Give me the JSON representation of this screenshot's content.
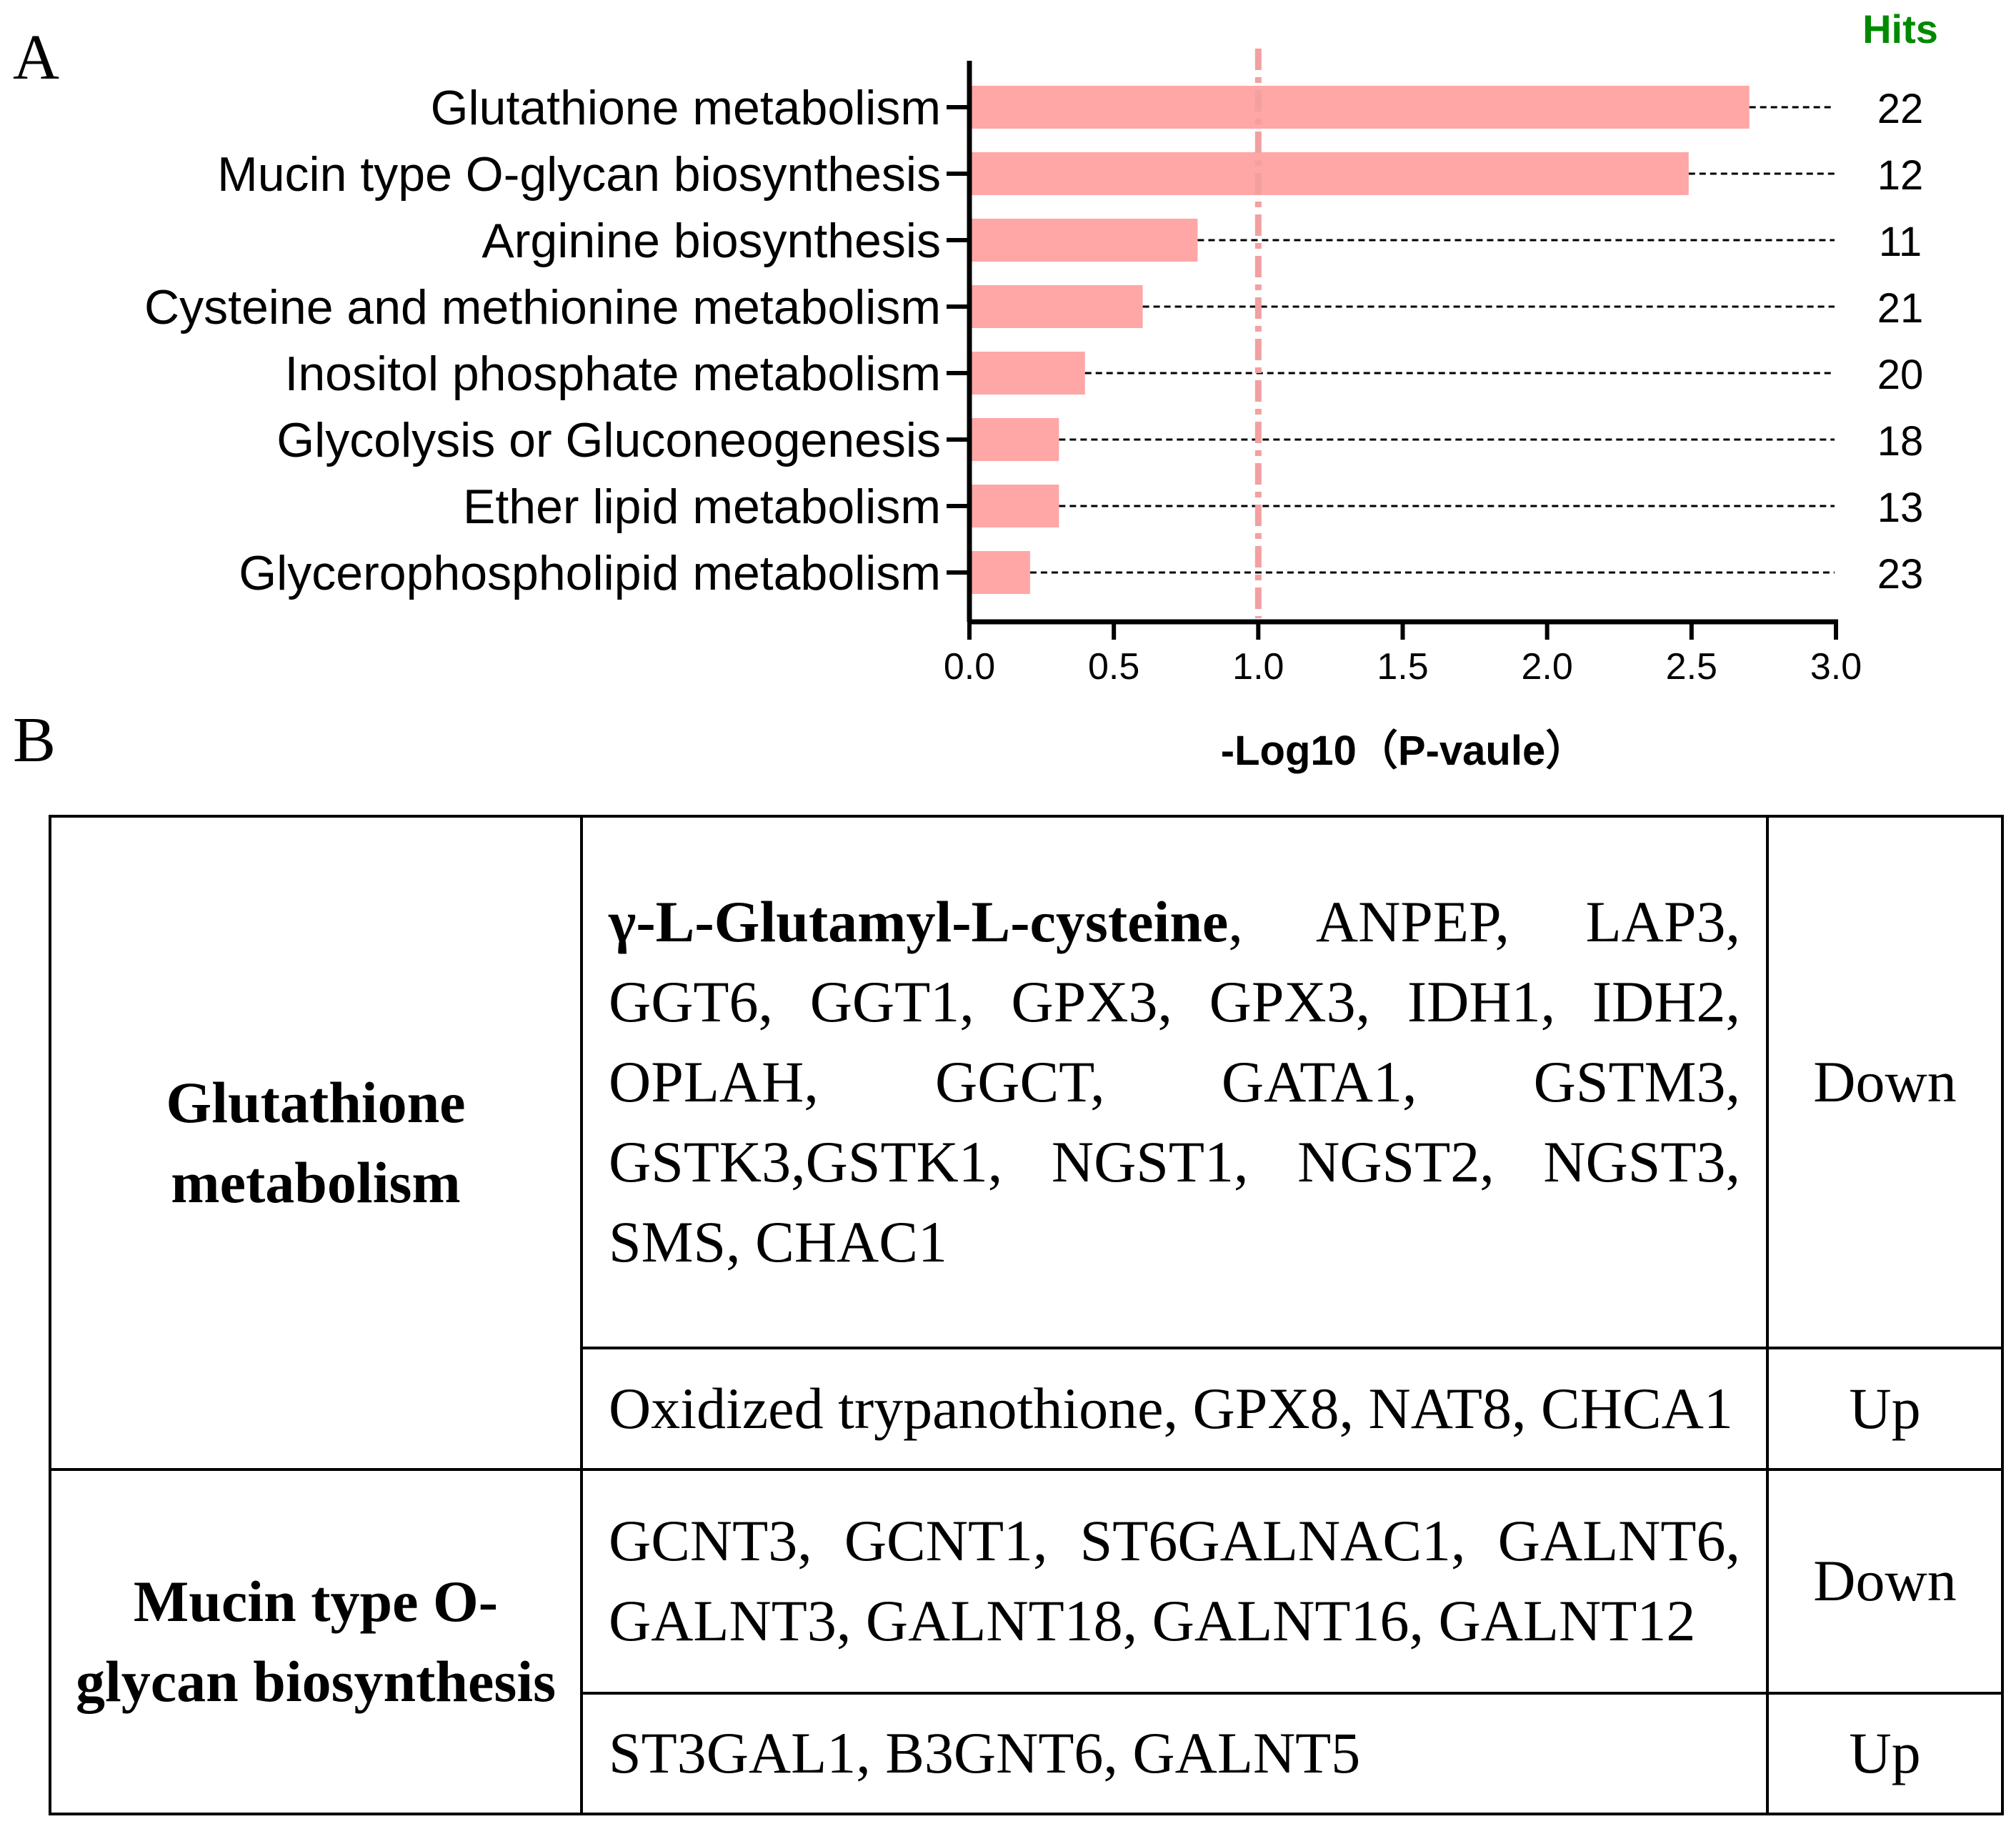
{
  "panel_a_letter": "A",
  "panel_b_letter": "B",
  "chart_data": {
    "type": "bar",
    "orientation": "horizontal",
    "categories": [
      "Glutathione metabolism",
      "Mucin type O-glycan biosynthesis",
      "Arginine biosynthesis",
      "Cysteine and methionine metabolism",
      "Inositol phosphate metabolism",
      "Glycolysis or Gluconeogenesis",
      "Ether lipid metabolism",
      "Glycerophospholipid metabolism"
    ],
    "values": [
      2.7,
      2.49,
      0.79,
      0.6,
      0.4,
      0.31,
      0.31,
      0.21
    ],
    "hits": [
      "22",
      "12",
      "11",
      "21",
      "20",
      "18",
      "13",
      "23"
    ],
    "hits_title": "Hits",
    "xlabel": "-Log10（P-vaule）",
    "ylabel": "",
    "xlim": [
      0,
      3
    ],
    "xticks": [
      "0.0",
      "0.5",
      "1.0",
      "1.5",
      "2.0",
      "2.5",
      "3.0"
    ],
    "threshold": 1.0,
    "bar_color": "#ffa6a6",
    "threshold_color": "#f2a0a0",
    "hits_title_color": "#008a00"
  },
  "table": {
    "rows": [
      {
        "pathway": "Glutathione metabolism",
        "groups": [
          {
            "lead_bold": "γ-L-Glutamyl-L-cysteine",
            "genes": ", ANPEP, LAP3, GGT6, GGT1, GPX3, GPX3, IDH1, IDH2, OPLAH, GGCT, GATA1, GSTM3, GSTK3,GSTK1, NGST1, NGST2, NGST3, SMS, CHAC1",
            "direction": "Down"
          },
          {
            "lead_bold": "",
            "genes": "Oxidized trypanothione, GPX8, NAT8, CHCA1",
            "direction": "Up"
          }
        ]
      },
      {
        "pathway": "Mucin type O-glycan biosynthesis",
        "groups": [
          {
            "lead_bold": "",
            "genes": "GCNT3, GCNT1, ST6GALNAC1, GALNT6, GALNT3, GALNT18, GALNT16, GALNT12",
            "direction": "Down"
          },
          {
            "lead_bold": "",
            "genes": "ST3GAL1, B3GNT6, GALNT5",
            "direction": "Up"
          }
        ]
      }
    ]
  }
}
